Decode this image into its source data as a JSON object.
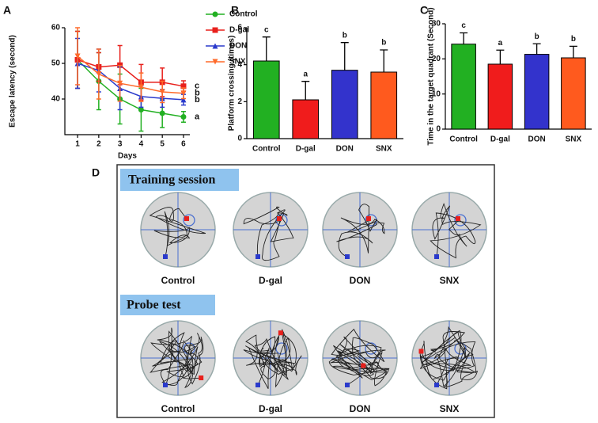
{
  "chart_data": [
    {
      "type": "line",
      "panel": "A",
      "ylabel": "Escape latency (second)",
      "xlabel": "Days",
      "x": [
        1,
        2,
        3,
        4,
        5,
        6
      ],
      "xlim": [
        0.4,
        6.3
      ],
      "xticks": [
        1,
        2,
        3,
        4,
        5,
        6
      ],
      "ylim": [
        30,
        60
      ],
      "yticks": [
        40,
        50,
        60
      ],
      "legend": "right",
      "series": [
        {
          "name": "Control",
          "color": "#22b022",
          "marker": "circle",
          "significance": "a",
          "values": [
            51,
            45,
            40,
            37,
            36,
            35
          ],
          "errors": [
            8,
            8,
            7,
            6,
            4,
            1.5
          ]
        },
        {
          "name": "D-gal",
          "color": "#e8201c",
          "marker": "square",
          "significance": "c",
          "values": [
            51,
            49,
            49.5,
            44.7,
            44.7,
            43.6
          ],
          "errors": [
            8,
            4,
            5.5,
            5,
            4,
            1.5
          ]
        },
        {
          "name": "DON",
          "color": "#2a3acc",
          "marker": "triangle",
          "significance": "b",
          "values": [
            50,
            48,
            43,
            40.7,
            40.2,
            39.8
          ],
          "errors": [
            7,
            6,
            6,
            3,
            2.5,
            1.5
          ]
        },
        {
          "name": "SNX",
          "color": "#ff6a2a",
          "marker": "triangle-down",
          "significance": "b",
          "values": [
            52,
            47,
            44.4,
            43.3,
            42,
            41.6
          ],
          "errors": [
            8,
            7,
            5,
            4,
            3,
            1.5
          ]
        }
      ]
    },
    {
      "type": "bar",
      "panel": "B",
      "ylabel": "Platform crossing (times)",
      "categories": [
        "Control",
        "D-gal",
        "DON",
        "SNX"
      ],
      "values": [
        4.2,
        2.1,
        3.7,
        3.6
      ],
      "errors": [
        1.3,
        1.0,
        1.5,
        1.2
      ],
      "significance": [
        "c",
        "a",
        "b",
        "b"
      ],
      "colors": [
        "#22b022",
        "#f01c1c",
        "#3333cc",
        "#ff5a1e"
      ],
      "ylim": [
        0,
        6
      ],
      "yticks": [
        0,
        2,
        4,
        6
      ]
    },
    {
      "type": "bar",
      "panel": "C",
      "ylabel": "Time in the target quadrant (Second)",
      "categories": [
        "Control",
        "D-gal",
        "DON",
        "SNX"
      ],
      "values": [
        24.2,
        18.5,
        21.3,
        20.3
      ],
      "errors": [
        3.2,
        4.0,
        3.0,
        3.3
      ],
      "significance": [
        "c",
        "a",
        "b",
        "b"
      ],
      "colors": [
        "#22b022",
        "#f01c1c",
        "#3333cc",
        "#ff5a1e"
      ],
      "ylim": [
        0,
        30
      ],
      "yticks": [
        0,
        10,
        20,
        30
      ]
    }
  ],
  "trajectory_panel": {
    "panel": "D",
    "sections": [
      {
        "title": "Training session",
        "groups": [
          "Control",
          "D-gal",
          "DON",
          "SNX"
        ]
      },
      {
        "title": "Probe test",
        "groups": [
          "Control",
          "D-gal",
          "DON",
          "SNX"
        ]
      }
    ]
  }
}
